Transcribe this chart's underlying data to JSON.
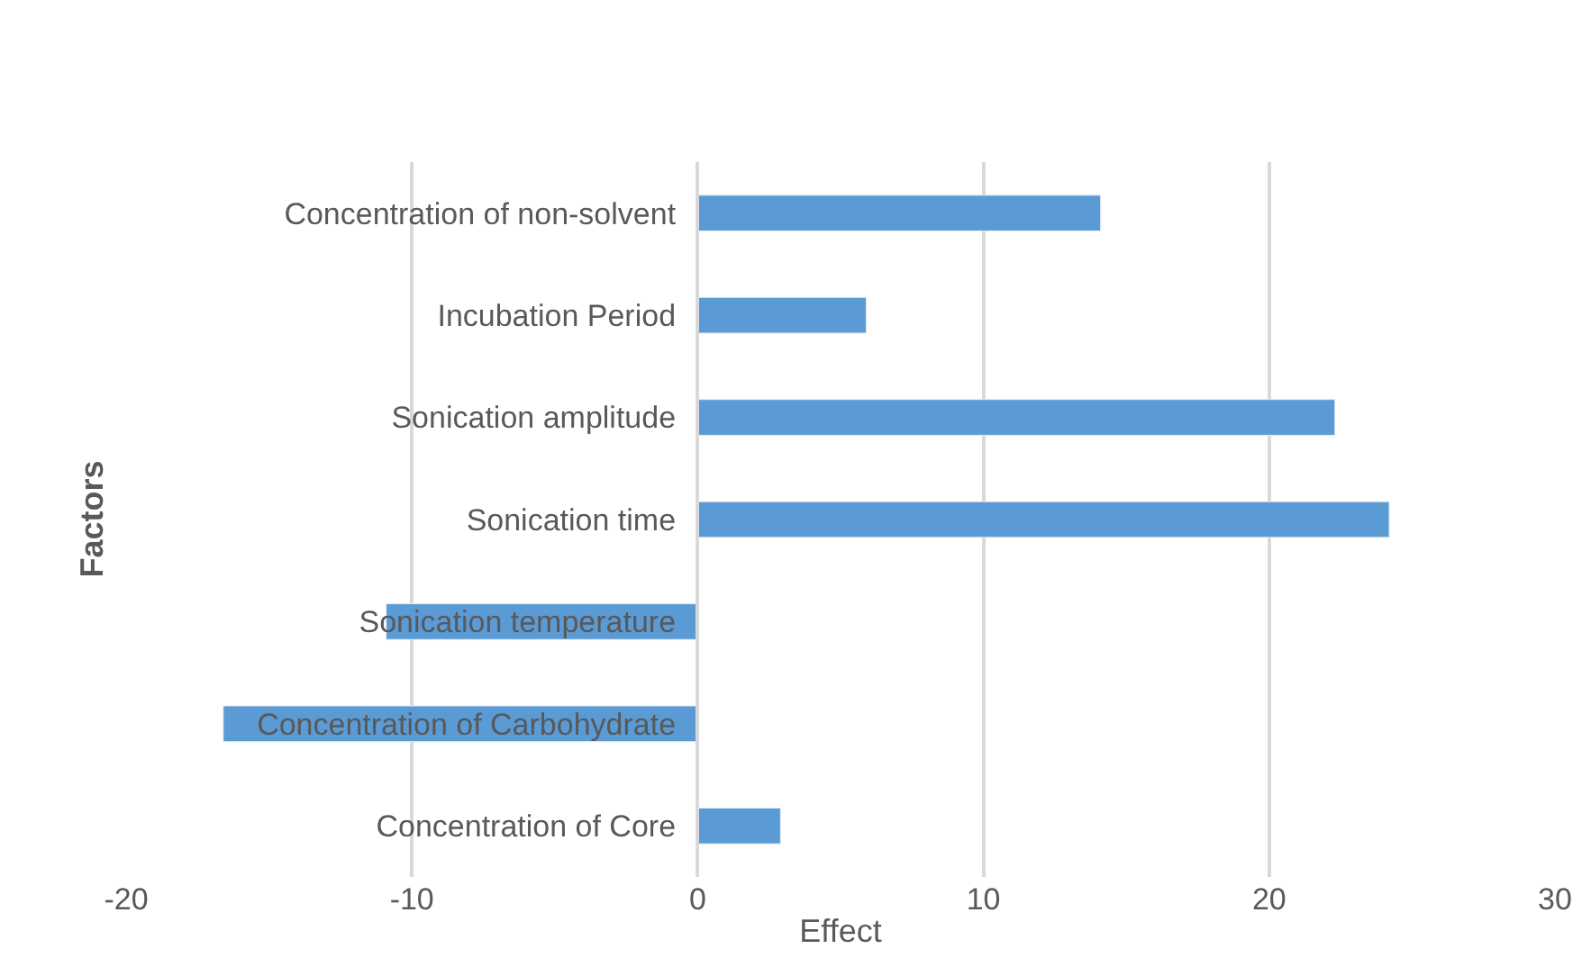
{
  "chart_data": {
    "type": "bar",
    "orientation": "horizontal",
    "xlabel": "Effect",
    "ylabel": "Factors",
    "categories": [
      "Concentration of non-solvent",
      "Incubation Period",
      "Sonication amplitude",
      "Sonication time",
      "Sonication temperature",
      "Concentration of Carbohydrate",
      "Concentration of Core"
    ],
    "values": [
      14.1,
      5.9,
      22.3,
      24.2,
      -10.9,
      -16.6,
      2.9
    ],
    "color": "#5b9bd5",
    "xlim": [
      -20,
      30
    ],
    "xticks": [
      -20,
      -10,
      0,
      10,
      20,
      30
    ],
    "grid": "x"
  }
}
